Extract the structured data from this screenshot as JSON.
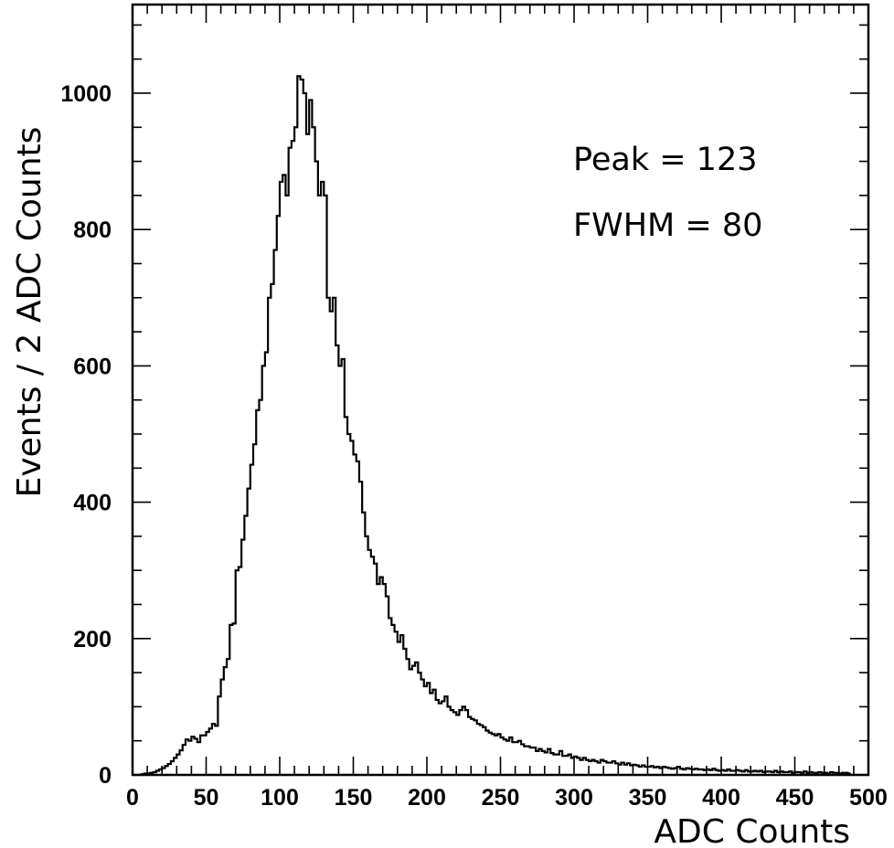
{
  "chart_data": {
    "type": "histogram",
    "title": "",
    "xlabel": "ADC Counts",
    "ylabel": "Events / 2 ADC Counts",
    "xlim": [
      0,
      500
    ],
    "ylim": [
      0,
      1130
    ],
    "grid": false,
    "bin_width": 2,
    "x_ticks": [
      0,
      50,
      100,
      150,
      200,
      250,
      300,
      350,
      400,
      450,
      500
    ],
    "x_tick_labels": [
      "0",
      "50",
      "100",
      "150",
      "200",
      "250",
      "300",
      "350",
      "400",
      "450",
      "500"
    ],
    "y_ticks": [
      0,
      200,
      400,
      600,
      800,
      1000
    ],
    "y_tick_labels": [
      "0",
      "200",
      "400",
      "600",
      "800",
      "1000"
    ],
    "annotations": [
      {
        "text": "Peak = 123"
      },
      {
        "text": "FWHM = 80"
      }
    ],
    "values": [
      0,
      0,
      0,
      1,
      2,
      2,
      3,
      4,
      6,
      8,
      10,
      13,
      16,
      20,
      25,
      30,
      36,
      44,
      52,
      50,
      56,
      53,
      48,
      58,
      58,
      63,
      68,
      75,
      72,
      115,
      140,
      158,
      170,
      220,
      222,
      300,
      305,
      345,
      380,
      420,
      455,
      485,
      535,
      550,
      600,
      620,
      700,
      720,
      770,
      820,
      870,
      880,
      850,
      920,
      930,
      950,
      1025,
      1020,
      1000,
      940,
      990,
      950,
      900,
      850,
      870,
      850,
      700,
      680,
      700,
      630,
      600,
      610,
      525,
      500,
      490,
      470,
      460,
      430,
      385,
      350,
      330,
      320,
      310,
      280,
      290,
      280,
      262,
      230,
      220,
      210,
      195,
      205,
      185,
      170,
      155,
      160,
      165,
      150,
      140,
      130,
      135,
      120,
      125,
      110,
      105,
      108,
      115,
      100,
      95,
      92,
      88,
      95,
      100,
      95,
      85,
      82,
      80,
      75,
      73,
      70,
      65,
      62,
      60,
      58,
      60,
      55,
      52,
      50,
      55,
      48,
      48,
      50,
      45,
      42,
      42,
      40,
      40,
      35,
      38,
      35,
      33,
      38,
      32,
      30,
      30,
      35,
      28,
      28,
      30,
      25,
      27,
      25,
      22,
      25,
      22,
      20,
      22,
      20,
      18,
      22,
      20,
      18,
      18,
      20,
      17,
      15,
      18,
      15,
      17,
      14,
      15,
      14,
      12,
      14,
      12,
      12,
      13,
      11,
      12,
      10,
      12,
      11,
      10,
      9,
      10,
      12,
      9,
      8,
      10,
      9,
      8,
      9,
      8,
      8,
      7,
      8,
      7,
      9,
      7,
      6,
      7,
      6,
      8,
      6,
      6,
      7,
      6,
      5,
      7,
      5,
      5,
      6,
      5,
      6,
      4,
      5,
      5,
      4,
      6,
      4,
      5,
      4,
      4,
      5,
      3,
      4,
      4,
      3,
      5,
      3,
      4,
      3,
      3,
      4,
      3,
      3,
      2,
      4,
      3,
      3,
      2,
      3,
      3,
      2
    ]
  }
}
